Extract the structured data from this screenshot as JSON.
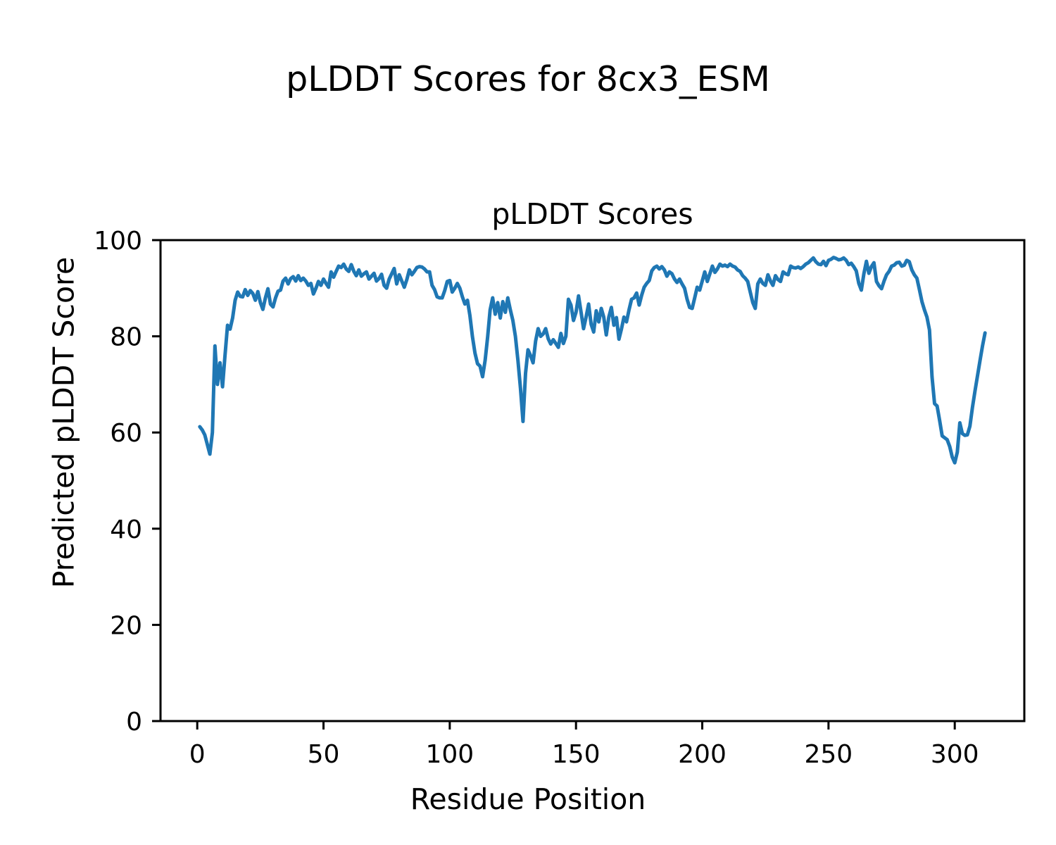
{
  "chart_data": {
    "type": "line",
    "suptitle": "pLDDT Scores for 8cx3_ESM",
    "title": "pLDDT Scores",
    "xlabel": "Residue Position",
    "ylabel": "Predicted pLDDT Score",
    "xlim": [
      -14.55,
      327.55
    ],
    "ylim": [
      0,
      100
    ],
    "xticks": [
      0,
      50,
      100,
      150,
      200,
      250,
      300
    ],
    "yticks": [
      0,
      20,
      40,
      60,
      80,
      100
    ],
    "grid": false,
    "legend": "none",
    "line_color": "#1f77b4",
    "line_width": 5,
    "axis_color": "#000000",
    "background_color": "#ffffff",
    "series": [
      {
        "name": "pLDDT",
        "x_start": 1,
        "n_points": 312,
        "y": [
          61.2,
          60.5,
          59.5,
          57.5,
          55.5,
          60,
          78,
          70,
          74.5,
          69.5,
          76,
          82.3,
          81.5,
          83.8,
          87.5,
          89.2,
          88.3,
          88.2,
          89.7,
          88.5,
          89.5,
          88.9,
          87.5,
          89.3,
          87,
          85.6,
          88,
          89.9,
          86.7,
          86.1,
          88,
          89.4,
          89.6,
          91.5,
          92.1,
          90.9,
          92,
          92.4,
          91.5,
          92.6,
          91.6,
          92.1,
          91.5,
          90.6,
          91,
          88.8,
          90,
          91.4,
          90.6,
          91.9,
          91,
          90.2,
          93.4,
          92.3,
          93.5,
          94.6,
          94.3,
          95,
          94,
          93.5,
          94.9,
          93.5,
          92.6,
          93.8,
          92.5,
          93,
          93.4,
          91.9,
          92.5,
          93.1,
          91.5,
          92,
          92.9,
          90.6,
          90,
          91.9,
          93,
          94.1,
          90.9,
          92.8,
          91.5,
          90.2,
          91.8,
          93.8,
          92.8,
          93.5,
          94.3,
          94.5,
          94.4,
          94,
          93.4,
          93.4,
          90.6,
          89.7,
          88.2,
          88,
          88,
          89.5,
          91.4,
          91.6,
          89.2,
          90,
          91,
          90,
          88.2,
          86.7,
          87.5,
          84.3,
          79.9,
          76.5,
          74.3,
          73.8,
          71.6,
          75,
          79.9,
          85.5,
          88,
          84.6,
          87,
          83.8,
          87.2,
          85,
          88,
          85.5,
          83.3,
          80,
          75,
          69.2,
          62.3,
          72.3,
          77.2,
          76,
          74.5,
          79,
          81.6,
          80,
          80.5,
          81.6,
          79.5,
          78.4,
          79.3,
          78.5,
          77.7,
          80.6,
          78.5,
          80,
          87.7,
          86.5,
          83.3,
          85,
          88.4,
          85,
          81.6,
          84,
          86.7,
          82.5,
          80.9,
          85.3,
          83,
          85.8,
          84,
          80.3,
          84,
          86,
          82.3,
          83.9,
          79.4,
          81.5,
          84,
          83,
          85.5,
          87.7,
          88,
          89,
          86.5,
          88.5,
          90.2,
          91,
          91.6,
          93.6,
          94.3,
          94.6,
          94,
          94.5,
          93.8,
          92.5,
          93.4,
          93,
          91.9,
          91.2,
          91.9,
          90.9,
          90,
          87.7,
          86,
          85.8,
          88,
          90.2,
          89.6,
          91.5,
          93.4,
          91.4,
          93,
          94.6,
          93.3,
          94,
          95,
          94.6,
          94.8,
          94.5,
          95,
          94.6,
          94.4,
          93.8,
          93.5,
          92.6,
          92.1,
          91.4,
          89.2,
          87,
          85.8,
          90.9,
          91.9,
          91,
          90.6,
          92.8,
          91.5,
          90.6,
          92.6,
          91.8,
          91.4,
          93.4,
          93,
          92.8,
          94.6,
          94.3,
          94.2,
          94.4,
          94.1,
          94.5,
          95,
          95.3,
          95.8,
          96.3,
          95.5,
          95,
          94.9,
          95.6,
          94.7,
          95.8,
          96,
          96.4,
          96.2,
          95.9,
          96,
          96.3,
          95.8,
          94.9,
          95.2,
          94.5,
          93.6,
          91,
          89.6,
          93,
          95.6,
          93.1,
          94.5,
          95.3,
          91.4,
          90.5,
          89.9,
          91.5,
          92.8,
          93.5,
          94.6,
          94.8,
          95.3,
          95.4,
          94.6,
          94.8,
          95.8,
          95.5,
          93.8,
          92.8,
          92.1,
          89.7,
          87.2,
          85.5,
          84,
          81.3,
          71.6,
          66,
          65.5,
          62.5,
          59.3,
          58.9,
          58.5,
          57.1,
          54.9,
          53.7,
          55.9,
          62,
          59.8,
          59.4,
          59.5,
          61.3,
          65.2,
          68.6,
          71.8,
          75,
          78,
          80.7
        ]
      }
    ]
  }
}
